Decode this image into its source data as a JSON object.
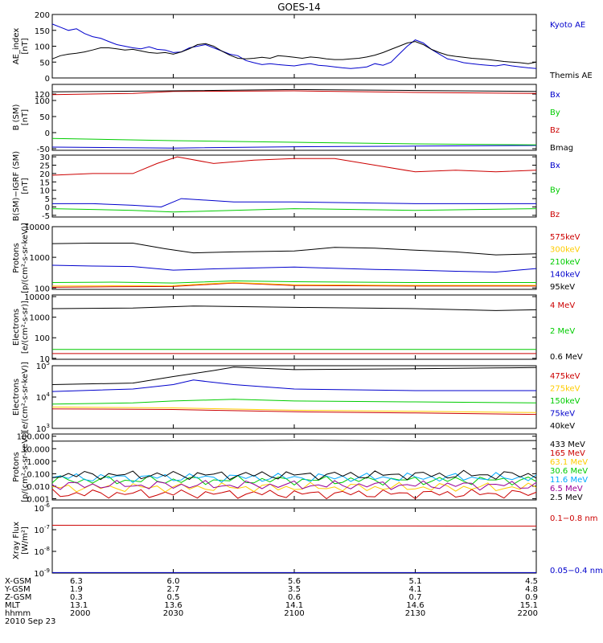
{
  "title": "GOES-14",
  "chart_data": [
    {
      "type": "line",
      "ylabel": [
        "AE_index",
        "[nT]"
      ],
      "ylim": [
        0,
        200
      ],
      "yticks": [
        {
          "v": 0,
          "t": "0"
        },
        {
          "v": 50,
          "t": "50"
        },
        {
          "v": 100,
          "t": "100"
        },
        {
          "v": 150,
          "t": "150"
        },
        {
          "v": 200,
          "t": "200"
        }
      ],
      "series": [
        {
          "name": "Kyoto AE",
          "color": "#0000cc",
          "x": [
            2000,
            2002,
            2004,
            2006,
            2008,
            2010,
            2012,
            2014,
            2016,
            2018,
            2020,
            2022,
            2024,
            2026,
            2028,
            2030,
            2032,
            2034,
            2036,
            2038,
            2040,
            2042,
            2044,
            2046,
            2048,
            2050,
            2052,
            2054,
            2056,
            2058,
            2100,
            2102,
            2104,
            2106,
            2108,
            2110,
            2112,
            2114,
            2116,
            2118,
            2120,
            2122,
            2124,
            2126,
            2128,
            2130,
            2132,
            2134,
            2136,
            2138,
            2140,
            2142,
            2144,
            2146,
            2148,
            2150,
            2152,
            2154,
            2156,
            2158,
            2200
          ],
          "y": [
            170,
            160,
            150,
            155,
            140,
            130,
            125,
            115,
            105,
            100,
            95,
            92,
            98,
            90,
            88,
            80,
            82,
            95,
            100,
            105,
            95,
            85,
            75,
            70,
            55,
            48,
            42,
            45,
            42,
            40,
            38,
            42,
            45,
            40,
            38,
            35,
            32,
            30,
            32,
            35,
            45,
            40,
            50,
            75,
            100,
            120,
            110,
            90,
            75,
            60,
            55,
            48,
            45,
            42,
            40,
            38,
            42,
            38,
            35,
            32,
            30
          ]
        },
        {
          "name": "Themis AE",
          "color": "#000000",
          "x": [
            2000,
            2002,
            2004,
            2006,
            2008,
            2010,
            2012,
            2014,
            2016,
            2018,
            2020,
            2022,
            2024,
            2026,
            2028,
            2030,
            2032,
            2034,
            2036,
            2038,
            2040,
            2042,
            2044,
            2046,
            2048,
            2050,
            2052,
            2054,
            2056,
            2058,
            2100,
            2102,
            2104,
            2106,
            2108,
            2110,
            2112,
            2114,
            2116,
            2118,
            2120,
            2122,
            2124,
            2126,
            2128,
            2130,
            2132,
            2134,
            2136,
            2138,
            2140,
            2142,
            2144,
            2146,
            2148,
            2150,
            2152,
            2154,
            2156,
            2158,
            2200
          ],
          "y": [
            60,
            70,
            75,
            78,
            82,
            88,
            95,
            95,
            92,
            88,
            90,
            85,
            80,
            78,
            80,
            75,
            82,
            92,
            105,
            108,
            100,
            85,
            72,
            62,
            60,
            62,
            65,
            62,
            70,
            68,
            65,
            62,
            66,
            64,
            60,
            58,
            58,
            60,
            62,
            66,
            72,
            80,
            90,
            100,
            110,
            115,
            105,
            90,
            80,
            72,
            68,
            65,
            62,
            60,
            58,
            55,
            52,
            50,
            48,
            45,
            50
          ]
        }
      ]
    },
    {
      "type": "line",
      "ylabel": [
        "B (SM)",
        "[nT]"
      ],
      "ylim": [
        -55,
        150
      ],
      "yticks": [
        {
          "v": -50,
          "t": "-50"
        },
        {
          "v": 0,
          "t": "0"
        },
        {
          "v": 50,
          "t": "50"
        },
        {
          "v": 100,
          "t": "100"
        },
        {
          "v": 120,
          "t": "120"
        }
      ],
      "series": [
        {
          "name": "Bx",
          "color": "#0000cc",
          "x": [
            2000,
            2030,
            2100,
            2130,
            2200
          ],
          "y": [
            -45,
            -48,
            -44,
            -42,
            -40
          ]
        },
        {
          "name": "By",
          "color": "#00cc00",
          "x": [
            2000,
            2030,
            2100,
            2130,
            2200
          ],
          "y": [
            -18,
            -25,
            -30,
            -35,
            -38
          ]
        },
        {
          "name": "Bz",
          "color": "#cc0000",
          "x": [
            2000,
            2020,
            2030,
            2100,
            2130,
            2200
          ],
          "y": [
            118,
            122,
            128,
            130,
            125,
            122
          ]
        },
        {
          "name": "Bmag",
          "color": "#000000",
          "x": [
            2000,
            2030,
            2100,
            2130,
            2200
          ],
          "y": [
            127,
            130,
            134,
            131,
            128
          ]
        }
      ]
    },
    {
      "type": "line",
      "ylabel": [
        "B(SM)−IGRF (SM)",
        "[nT]"
      ],
      "ylim": [
        -6,
        31
      ],
      "yticks": [
        {
          "v": -5,
          "t": "-5"
        },
        {
          "v": 0,
          "t": "0"
        },
        {
          "v": 5,
          "t": "5"
        },
        {
          "v": 10,
          "t": "10"
        },
        {
          "v": 15,
          "t": "15"
        },
        {
          "v": 20,
          "t": "20"
        },
        {
          "v": 25,
          "t": "25"
        },
        {
          "v": 30,
          "t": "30"
        }
      ],
      "series": [
        {
          "name": "Bx",
          "color": "#0000cc",
          "x": [
            2000,
            2010,
            2020,
            2027,
            2032,
            2045,
            2100,
            2130,
            2200
          ],
          "y": [
            2,
            2,
            1,
            0,
            5,
            3,
            3,
            2,
            2
          ]
        },
        {
          "name": "By",
          "color": "#00cc00",
          "x": [
            2000,
            2020,
            2030,
            2100,
            2130,
            2200
          ],
          "y": [
            -1,
            -2,
            -3,
            -1,
            -2,
            -1
          ]
        },
        {
          "name": "Bz",
          "color": "#cc0000",
          "x": [
            2000,
            2010,
            2020,
            2026,
            2031,
            2040,
            2050,
            2100,
            2110,
            2120,
            2130,
            2140,
            2150,
            2200
          ],
          "y": [
            19,
            20,
            20,
            26,
            30,
            26,
            28,
            29,
            29,
            25,
            21,
            22,
            21,
            22
          ]
        }
      ]
    },
    {
      "type": "line",
      "scale": "log",
      "ylabel": [
        "Protons",
        "[p/(cm²-s-sr-keV)]"
      ],
      "ylim": [
        90,
        10000
      ],
      "yticks": [
        {
          "v": 100,
          "t": "100"
        },
        {
          "v": 1000,
          "t": "1000"
        },
        {
          "v": 10000,
          "t": "10000"
        }
      ],
      "series": [
        {
          "name": "575keV",
          "color": "#cc0000",
          "x": [
            2000,
            2015,
            2030,
            2045,
            2100,
            2130,
            2200
          ],
          "y": [
            105,
            110,
            112,
            145,
            120,
            115,
            115
          ]
        },
        {
          "name": "300keV",
          "color": "#ffcc00",
          "x": [
            2000,
            2015,
            2030,
            2045,
            2100,
            2130,
            2200
          ],
          "y": [
            115,
            118,
            120,
            150,
            128,
            122,
            122
          ]
        },
        {
          "name": "210keV",
          "color": "#00cc00",
          "x": [
            2000,
            2015,
            2030,
            2045,
            2100,
            2130,
            2200
          ],
          "y": [
            150,
            155,
            145,
            170,
            160,
            150,
            150
          ]
        },
        {
          "name": "140keV",
          "color": "#0000cc",
          "x": [
            2000,
            2010,
            2020,
            2030,
            2040,
            2100,
            2120,
            2130,
            2140,
            2150,
            2200
          ],
          "y": [
            550,
            520,
            500,
            380,
            420,
            480,
            400,
            380,
            350,
            330,
            430
          ]
        },
        {
          "name": "95keV",
          "color": "#000000",
          "x": [
            2000,
            2010,
            2020,
            2028,
            2035,
            2045,
            2100,
            2110,
            2120,
            2130,
            2140,
            2150,
            2200
          ],
          "y": [
            2800,
            2900,
            2900,
            1900,
            1400,
            1500,
            1600,
            2100,
            2000,
            1700,
            1500,
            1200,
            1300
          ]
        }
      ]
    },
    {
      "type": "line",
      "scale": "log",
      "ylabel": [
        "Electrons",
        "[e/(cm²-s-sr)]"
      ],
      "ylim": [
        9,
        12000
      ],
      "yticks": [
        {
          "v": 10,
          "t": "10"
        },
        {
          "v": 100,
          "t": "100"
        },
        {
          "v": 1000,
          "t": "1000"
        },
        {
          "v": 10000,
          "t": "10000"
        }
      ],
      "series": [
        {
          "name": "4 MeV",
          "color": "#cc0000",
          "x": [
            2000,
            2200
          ],
          "y": [
            17,
            17
          ]
        },
        {
          "name": "2 MeV",
          "color": "#00cc00",
          "x": [
            2000,
            2200
          ],
          "y": [
            27,
            27
          ]
        },
        {
          "name": "0.6 MeV",
          "color": "#000000",
          "x": [
            2000,
            2020,
            2035,
            2100,
            2130,
            2150,
            2200
          ],
          "y": [
            2600,
            2800,
            3500,
            3000,
            2600,
            2100,
            2300
          ]
        }
      ]
    },
    {
      "type": "line",
      "scale": "log",
      "ylabel": [
        "Electrons",
        "[e/(cm²-s-sr-keV)]"
      ],
      "ylim": [
        1000,
        100000
      ],
      "yticks": [
        {
          "v": 1000,
          "t": "10³",
          "b": "10",
          "e": "3"
        },
        {
          "v": 10000,
          "t": "10⁴",
          "b": "10",
          "e": "4"
        },
        {
          "v": 100000,
          "t": "10⁵",
          "b": "10",
          "e": "5"
        }
      ],
      "series": [
        {
          "name": "475keV",
          "color": "#cc0000",
          "x": [
            2000,
            2030,
            2100,
            2130,
            2200
          ],
          "y": [
            4200,
            4000,
            3400,
            3100,
            2800
          ]
        },
        {
          "name": "275keV",
          "color": "#ffcc00",
          "x": [
            2000,
            2030,
            2100,
            2130,
            2200
          ],
          "y": [
            4800,
            4500,
            3800,
            3500,
            3200
          ]
        },
        {
          "name": "150keV",
          "color": "#00cc00",
          "x": [
            2000,
            2020,
            2030,
            2045,
            2100,
            2130,
            2200
          ],
          "y": [
            6000,
            6500,
            7500,
            8500,
            7500,
            7000,
            6500
          ]
        },
        {
          "name": "75keV",
          "color": "#0000cc",
          "x": [
            2000,
            2020,
            2030,
            2035,
            2045,
            2100,
            2130,
            2200
          ],
          "y": [
            15000,
            18000,
            25000,
            35000,
            25000,
            18000,
            16000,
            16000
          ]
        },
        {
          "name": "40keV",
          "color": "#000000",
          "x": [
            2000,
            2020,
            2030,
            2040,
            2045,
            2100,
            2130,
            2150,
            2200
          ],
          "y": [
            25000,
            28000,
            45000,
            70000,
            90000,
            75000,
            80000,
            85000,
            88000
          ]
        }
      ]
    },
    {
      "type": "line",
      "scale": "log",
      "ylabel": [
        "Protons",
        "[p/(cm²-s-sr-keV)]"
      ],
      "ylim": [
        0.0008,
        150
      ],
      "yticks": [
        {
          "v": 0.001,
          "t": "0.001"
        },
        {
          "v": 0.01,
          "t": "0.010"
        },
        {
          "v": 0.1,
          "t": "0.100"
        },
        {
          "v": 1,
          "t": "1.000"
        },
        {
          "v": 10,
          "t": "10.000"
        },
        {
          "v": 100,
          "t": "100.000"
        }
      ],
      "noisy": true,
      "series": [
        {
          "name": "433 MeV",
          "color": "#000000",
          "x": [
            2000,
            2050,
            2100,
            2130,
            2200
          ],
          "y": [
            40,
            45,
            48,
            42,
            45
          ]
        },
        {
          "name": "165 MeV",
          "color": "#cc0000",
          "x": [
            2000,
            2200
          ],
          "y": [
            0.0025,
            0.0025
          ]
        },
        {
          "name": "63.1 MeV",
          "color": "#ffcc00",
          "x": [
            2000,
            2200
          ],
          "y": [
            0.008,
            0.008
          ]
        },
        {
          "name": "30.6 MeV",
          "color": "#00cc00",
          "x": [
            2000,
            2200
          ],
          "y": [
            0.03,
            0.03
          ]
        },
        {
          "name": "11.6 MeV",
          "color": "#00aaff",
          "x": [
            2000,
            2200
          ],
          "y": [
            0.05,
            0.05
          ]
        },
        {
          "name": "6.5 MeV",
          "color": "#990099",
          "x": [
            2000,
            2200
          ],
          "y": [
            0.012,
            0.012
          ]
        },
        {
          "name": "2.5 MeV",
          "color": "#000000",
          "x": [
            2000,
            2200
          ],
          "y": [
            0.08,
            0.08
          ]
        }
      ]
    },
    {
      "type": "line",
      "scale": "log",
      "ylabel": [
        "Xray Flux",
        "[W/m²]"
      ],
      "ylim": [
        1e-09,
        1e-06
      ],
      "yticks": [
        {
          "v": 1e-09,
          "t": "10⁻⁹",
          "b": "10",
          "e": "-9"
        },
        {
          "v": 1e-08,
          "t": "10⁻⁸",
          "b": "10",
          "e": "-8"
        },
        {
          "v": 1e-07,
          "t": "10⁻⁷",
          "b": "10",
          "e": "-7"
        },
        {
          "v": 1e-06,
          "t": "10⁻⁶",
          "b": "10",
          "e": "-6"
        }
      ],
      "series": [
        {
          "name": "0.1−0.8 nm",
          "color": "#cc0000",
          "x": [
            2000,
            2050,
            2100,
            2150,
            2200
          ],
          "y": [
            1.6e-07,
            1.5e-07,
            1.5e-07,
            1.45e-07,
            1.45e-07
          ]
        },
        {
          "name": "0.05−0.4 nm",
          "color": "#0000cc",
          "x": [
            2000,
            2200
          ],
          "y": [
            1.05e-09,
            1.05e-09
          ]
        }
      ]
    }
  ],
  "x_axis": {
    "ticks": [
      2000,
      2030,
      2100,
      2130,
      2200
    ],
    "rows": [
      {
        "label": "X-GSM",
        "values": [
          "6.3",
          "6.0",
          "5.6",
          "5.1",
          "4.5"
        ]
      },
      {
        "label": "Y-GSM",
        "values": [
          "1.9",
          "2.7",
          "3.5",
          "4.1",
          "4.8"
        ]
      },
      {
        "label": "Z-GSM",
        "values": [
          "0.3",
          "0.5",
          "0.6",
          "0.7",
          "0.9"
        ]
      },
      {
        "label": "MLT",
        "values": [
          "13.1",
          "13.6",
          "14.1",
          "14.6",
          "15.1"
        ]
      },
      {
        "label": "hhmm",
        "values": [
          "2000",
          "2030",
          "2100",
          "2130",
          "2200"
        ]
      }
    ],
    "date": "2010 Sep 23"
  }
}
